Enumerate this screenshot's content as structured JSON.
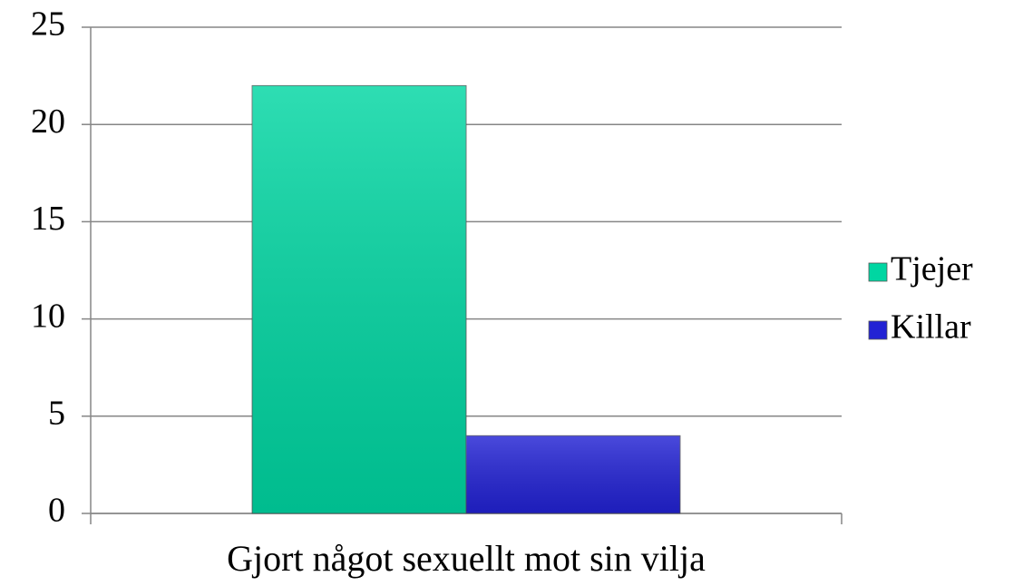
{
  "chart_data": {
    "type": "bar",
    "categories": [
      "Gjort något sexuellt mot sin vilja"
    ],
    "series": [
      {
        "name": "Tjejer",
        "color": "#00d6a2",
        "values": [
          22
        ]
      },
      {
        "name": "Killar",
        "color": "#2222d4",
        "values": [
          4
        ]
      }
    ],
    "ylim": [
      0,
      25
    ],
    "yticks": [
      0,
      5,
      10,
      15,
      20,
      25
    ],
    "grid": true,
    "legend": "right"
  }
}
